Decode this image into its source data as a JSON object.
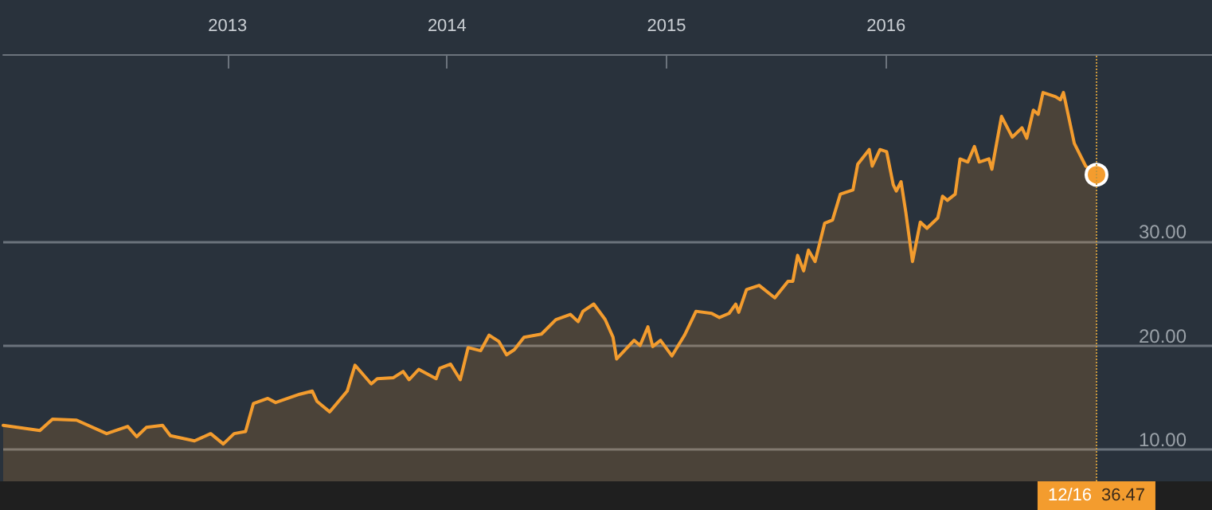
{
  "chart_data": {
    "type": "area",
    "tick_labels": "xy",
    "grid": "y",
    "marker": "none",
    "line_style": "solid",
    "x": [
      "2011-12-25",
      "2012-02-24",
      "2012-03-16",
      "2012-04-25",
      "2012-06-14",
      "2012-07-19",
      "2012-08-03",
      "2012-08-19",
      "2012-09-15",
      "2012-09-28",
      "2012-11-07",
      "2012-12-04",
      "2012-12-25",
      "2013-01-12",
      "2013-01-31",
      "2013-02-13",
      "2013-03-09",
      "2013-03-22",
      "2013-05-01",
      "2013-05-22",
      "2013-05-30",
      "2013-06-20",
      "2013-07-19",
      "2013-08-01",
      "2013-08-28",
      "2013-09-07",
      "2013-10-04",
      "2013-10-20",
      "2013-10-30",
      "2013-11-15",
      "2013-12-14",
      "2013-12-20",
      "2014-01-07",
      "2014-01-23",
      "2014-02-05",
      "2014-02-26",
      "2014-03-12",
      "2014-03-28",
      "2014-04-10",
      "2014-04-23",
      "2014-05-09",
      "2014-06-07",
      "2014-07-01",
      "2014-07-25",
      "2014-08-07",
      "2014-08-15",
      "2014-09-02",
      "2014-09-21",
      "2014-10-04",
      "2014-10-10",
      "2014-11-08",
      "2014-11-18",
      "2014-12-01",
      "2014-12-09",
      "2014-12-22",
      "2015-01-10",
      "2015-01-31",
      "2015-02-19",
      "2015-03-17",
      "2015-03-30",
      "2015-04-15",
      "2015-04-26",
      "2015-05-01",
      "2015-05-14",
      "2015-06-04",
      "2015-06-30",
      "2015-07-22",
      "2015-07-30",
      "2015-08-07",
      "2015-08-17",
      "2015-08-25",
      "2015-09-05",
      "2015-09-21",
      "2015-10-04",
      "2015-10-17",
      "2015-11-07",
      "2015-11-15",
      "2015-12-04",
      "2015-12-09",
      "2015-12-22",
      "2016-01-02",
      "2016-01-13",
      "2016-01-18",
      "2016-01-26",
      "2016-02-03",
      "2016-02-14",
      "2016-02-27",
      "2016-03-09",
      "2016-03-27",
      "2016-04-04",
      "2016-04-12",
      "2016-04-25",
      "2016-05-03",
      "2016-05-16",
      "2016-05-27",
      "2016-06-04",
      "2016-06-20",
      "2016-06-25",
      "2016-07-11",
      "2016-07-29",
      "2016-08-14",
      "2016-08-22",
      "2016-09-02",
      "2016-09-10",
      "2016-09-18",
      "2016-10-09",
      "2016-10-17",
      "2016-10-22",
      "2016-11-09",
      "2016-11-28",
      "2016-12-16"
    ],
    "series": [
      {
        "color": "#f39c2e",
        "values": [
          12.3,
          11.8,
          12.9,
          12.8,
          11.5,
          12.2,
          11.2,
          12.1,
          12.3,
          11.3,
          10.8,
          11.5,
          10.5,
          11.5,
          11.7,
          14.4,
          14.9,
          14.5,
          15.3,
          15.6,
          14.6,
          13.6,
          15.6,
          18.1,
          16.3,
          16.8,
          16.9,
          17.5,
          16.7,
          17.7,
          16.8,
          17.8,
          18.2,
          16.7,
          19.8,
          19.5,
          21.0,
          20.4,
          19.1,
          19.6,
          20.8,
          21.1,
          22.5,
          23.0,
          22.3,
          23.3,
          24.0,
          22.5,
          20.8,
          18.7,
          20.5,
          20.0,
          21.8,
          19.9,
          20.5,
          19.0,
          21.0,
          23.3,
          23.1,
          22.7,
          23.1,
          24.0,
          23.2,
          25.4,
          25.8,
          24.6,
          26.2,
          26.2,
          28.7,
          27.2,
          29.2,
          28.1,
          31.8,
          32.1,
          34.6,
          35.0,
          37.5,
          38.9,
          37.3,
          38.9,
          38.7,
          35.5,
          34.9,
          35.8,
          32.8,
          28.1,
          31.9,
          31.3,
          32.3,
          34.4,
          34.0,
          34.6,
          38.0,
          37.7,
          39.2,
          37.7,
          38.0,
          37.0,
          42.1,
          40.1,
          41.0,
          40.0,
          42.7,
          42.3,
          44.4,
          44.0,
          43.7,
          44.4,
          39.5,
          37.3,
          36.47
        ]
      }
    ],
    "xlim": [
      "2011-12-25",
      "2017-06-26"
    ],
    "xticks": [
      {
        "value": "2013-01-01",
        "label": "2013"
      },
      {
        "value": "2014-01-01",
        "label": "2014"
      },
      {
        "value": "2015-01-01",
        "label": "2015"
      },
      {
        "value": "2016-01-01",
        "label": "2016"
      }
    ],
    "ylim": [
      6.9,
      48.1
    ],
    "yticks": [
      {
        "value": 10,
        "label": "10.00"
      },
      {
        "value": 20,
        "label": "20.00"
      },
      {
        "value": 30,
        "label": "30.00"
      }
    ],
    "ref_lines": [
      {
        "axis": "x",
        "value": "2016-12-16",
        "label": "12/16",
        "color": "#c8963c",
        "line_style": "dotted"
      }
    ],
    "annotations": [
      "36.47"
    ]
  }
}
